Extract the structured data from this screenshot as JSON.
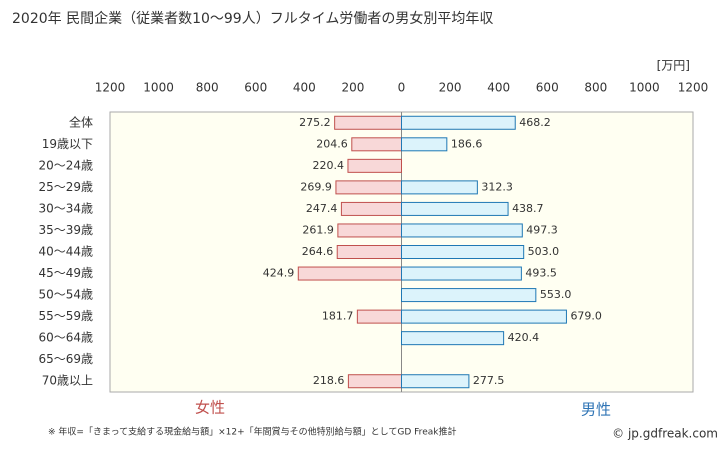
{
  "chart_data": {
    "type": "butterfly-bar",
    "title": "2020年 民間企業（従業者数10～99人）フルタイム労働者の男女別平均年収",
    "unit": "[万円]",
    "categories": [
      "全体",
      "19歳以下",
      "20～24歳",
      "25～29歳",
      "30～34歳",
      "35～39歳",
      "40～44歳",
      "45～49歳",
      "50～54歳",
      "55～59歳",
      "60～64歳",
      "65～69歳",
      "70歳以上"
    ],
    "series": [
      {
        "name": "女性",
        "side": "left",
        "color": "#f8d8d8",
        "edge": "#c0504d",
        "text_color": "#c0504d",
        "values": [
          275.2,
          204.6,
          220.4,
          269.9,
          247.4,
          261.9,
          264.6,
          424.9,
          null,
          181.7,
          null,
          null,
          218.6
        ],
        "value_labels": [
          "275.2",
          "204.6",
          "220.4",
          "269.9",
          "247.4",
          "261.9",
          "264.6",
          "424.9",
          null,
          "181.7",
          null,
          null,
          "218.6"
        ]
      },
      {
        "name": "男性",
        "side": "right",
        "color": "#dcf3fb",
        "edge": "#1f78b4",
        "text_color": "#2f74b5",
        "values": [
          468.2,
          186.6,
          null,
          312.3,
          438.7,
          497.3,
          503.0,
          493.5,
          553.0,
          679.0,
          420.4,
          null,
          277.5
        ],
        "value_labels": [
          "468.2",
          "186.6",
          null,
          "312.3",
          "438.7",
          "497.3",
          "503.0",
          "493.5",
          "553.0",
          "679.0",
          "420.4",
          null,
          "277.5"
        ]
      }
    ],
    "xlim": [
      -1200,
      1200
    ],
    "xticks": [
      {
        "value": -1200,
        "label": "1200"
      },
      {
        "value": -1000,
        "label": "1000"
      },
      {
        "value": -800,
        "label": "800"
      },
      {
        "value": -600,
        "label": "600"
      },
      {
        "value": -400,
        "label": "400"
      },
      {
        "value": -200,
        "label": "200"
      },
      0,
      200,
      400,
      600,
      800,
      1000,
      1200
    ],
    "footnote": "※ 年収=「きまって支給する現金給与額」×12+「年間賞与その他特別給与額」としてGD Freak推計",
    "credit": "© jp.gdfreak.com"
  }
}
